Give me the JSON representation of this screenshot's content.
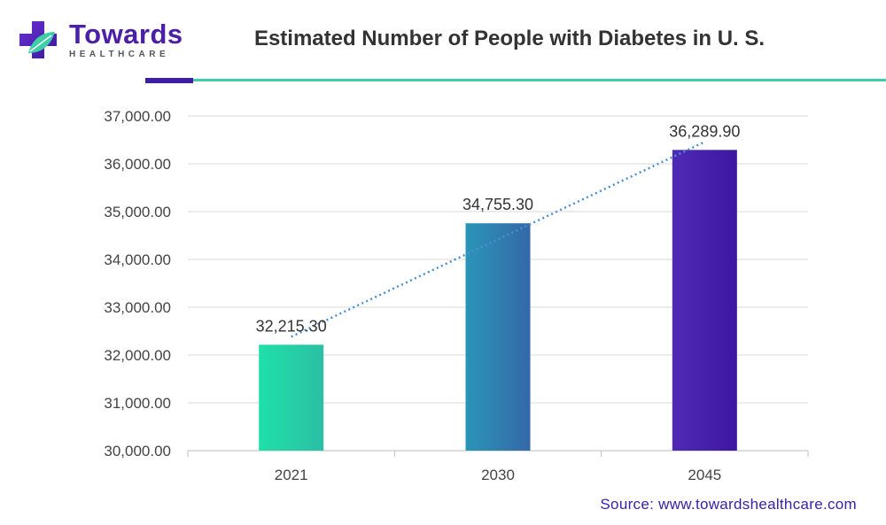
{
  "brand": {
    "name": "Towards",
    "subtitle": "HEALTHCARE",
    "colors": {
      "purple": "#4b1fa6",
      "green": "#3ecfa6"
    }
  },
  "source": "Source: www.towardshealthcare.com",
  "chart_data": {
    "type": "bar",
    "title": "Estimated Number of People with Diabetes in U. S.",
    "categories": [
      "2021",
      "2030",
      "2045"
    ],
    "values": [
      32215.3,
      34755.3,
      36289.9
    ],
    "value_labels": [
      "32,215.30",
      "34,755.30",
      "36,289.90"
    ],
    "xlabel": "",
    "ylabel": "",
    "ylim": [
      30000,
      37000
    ],
    "yticks": [
      30000,
      31000,
      32000,
      33000,
      34000,
      35000,
      36000,
      37000
    ],
    "ytick_labels": [
      "30,000.00",
      "31,000.00",
      "32,000.00",
      "33,000.00",
      "34,000.00",
      "35,000.00",
      "36,000.00",
      "37,000.00"
    ],
    "grid": true,
    "trendline": "linear",
    "bar_gradients": [
      [
        "#1fe0a8",
        "#2bbfa4"
      ],
      [
        "#2a95b8",
        "#3568a8"
      ],
      [
        "#4f2ab5",
        "#3d17a0"
      ]
    ]
  }
}
